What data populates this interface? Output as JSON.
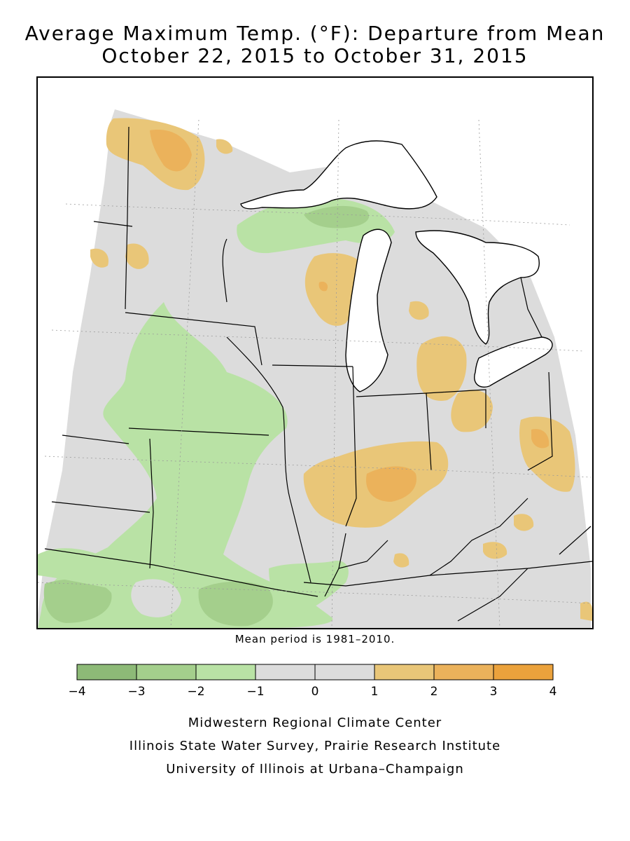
{
  "title": {
    "line1": "Average Maximum Temp. (°F): Departure from Mean",
    "line2": "October 22, 2015 to October 31, 2015"
  },
  "note": "Mean period is 1981–2010.",
  "legend": {
    "ticks": [
      "−4",
      "−3",
      "−2",
      "−1",
      "0",
      "1",
      "2",
      "3",
      "4"
    ],
    "bins": [
      {
        "from": -4,
        "to": -3,
        "color": "#8dba77"
      },
      {
        "from": -3,
        "to": -2,
        "color": "#a4cf8c"
      },
      {
        "from": -2,
        "to": -1,
        "color": "#b9e2a5"
      },
      {
        "from": -1,
        "to": 0,
        "color": "#dcdcdc"
      },
      {
        "from": 0,
        "to": 1,
        "color": "#dcdcdc"
      },
      {
        "from": 1,
        "to": 2,
        "color": "#e9c678"
      },
      {
        "from": 2,
        "to": 3,
        "color": "#ebb25b"
      },
      {
        "from": 3,
        "to": 4,
        "color": "#eba23c"
      }
    ]
  },
  "credits": {
    "line1": "Midwestern Regional Climate Center",
    "line2": "Illinois State Water Survey, Prairie Research Institute",
    "line3": "University of Illinois at Urbana–Champaign"
  },
  "colors": {
    "neutral": "#dcdcdc",
    "green_light": "#b9e2a5",
    "green_mid": "#a4cf8c",
    "green_dark": "#8dba77",
    "orange_light": "#e9c678",
    "orange_mid": "#ebb25b",
    "water": "#ffffff",
    "border": "#000000"
  }
}
